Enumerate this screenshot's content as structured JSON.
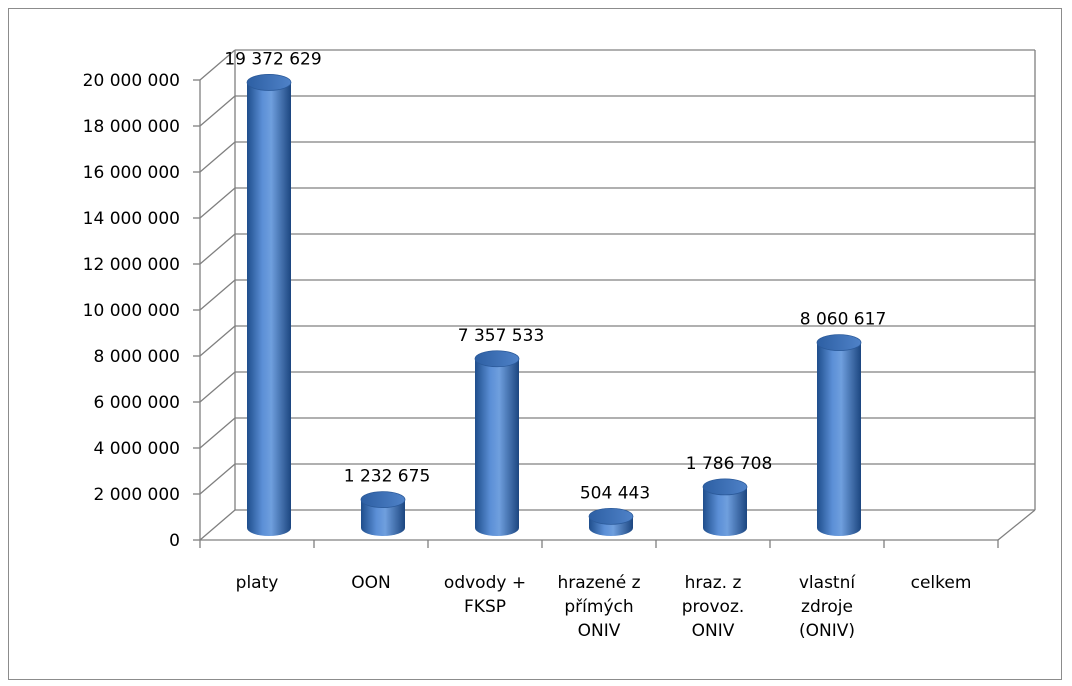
{
  "chart_data": {
    "type": "bar",
    "style": "3d-cylinder",
    "categories": [
      [
        "platy"
      ],
      [
        "OON"
      ],
      [
        "odvody +",
        "FKSP"
      ],
      [
        "hrazené z",
        "přímých",
        "ONIV"
      ],
      [
        "hraz. z",
        "provoz.",
        "ONIV"
      ],
      [
        "vlastní",
        "zdroje",
        "(ONIV)"
      ],
      [
        "celkem"
      ]
    ],
    "values": [
      19372629,
      1232675,
      7357533,
      504443,
      1786708,
      8060617,
      null
    ],
    "data_labels": [
      "19 372 629",
      "1 232 675",
      "7 357 533",
      "504 443",
      "1 786 708",
      "8 060 617",
      ""
    ],
    "yticks": [
      "0",
      "2 000 000",
      "4 000 000",
      "6 000 000",
      "8 000 000",
      "10 000 000",
      "12 000 000",
      "14 000 000",
      "16 000 000",
      "18 000 000",
      "20 000 000"
    ],
    "ylim": [
      0,
      20000000
    ],
    "ystep": 2000000,
    "grid": true,
    "legend": "none",
    "colors": {
      "bar_dark": "#1f4e8c",
      "bar_mid": "#4a7ec4",
      "bar_light": "#8db3e2",
      "bar_top": "#3a6fb5",
      "grid": "#808080",
      "axis": "#808080"
    }
  }
}
